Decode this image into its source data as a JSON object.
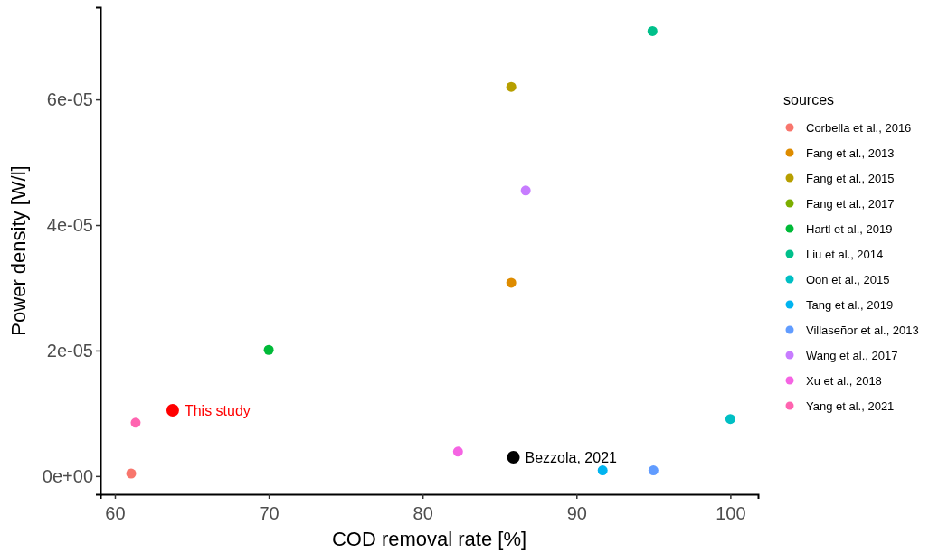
{
  "chart_data": {
    "type": "scatter",
    "xlabel": "COD removal rate [%]",
    "ylabel": "Power density [W/l]",
    "legend_title": "sources",
    "legend": "right",
    "grid": false,
    "marker": "circle",
    "xlim": [
      59.06,
      101.8
    ],
    "xticks": [
      60,
      70,
      80,
      90,
      100
    ],
    "ylim": [
      -2.9e-06,
      7.47e-05
    ],
    "yticks": [
      {
        "value": 0,
        "label": "0e+00"
      },
      {
        "value": 2e-05,
        "label": "2e-05"
      },
      {
        "value": 4e-05,
        "label": "4e-05"
      },
      {
        "value": 6e-05,
        "label": "6e-05"
      }
    ],
    "series": [
      {
        "name": "Corbella et al., 2016",
        "color": "#f8766d",
        "x": [
          61.06
        ],
        "values": [
          4e-07
        ]
      },
      {
        "name": "Fang et al., 2013",
        "color": "#de8c00",
        "x": [
          85.76
        ],
        "values": [
          3.08e-05
        ]
      },
      {
        "name": "Fang et al., 2015",
        "color": "#b79f00",
        "x": [
          85.76
        ],
        "values": [
          6.2e-05
        ]
      },
      {
        "name": "Fang et al., 2017",
        "color": "#7cae00",
        "x": [
          null
        ],
        "values": [
          null
        ]
      },
      {
        "name": "Hartl et al., 2019",
        "color": "#00ba38",
        "x": [
          70
        ],
        "values": [
          2.01e-05
        ]
      },
      {
        "name": "Liu et al., 2014",
        "color": "#00c08b",
        "x": [
          94.94
        ],
        "values": [
          7.09e-05
        ]
      },
      {
        "name": "Oon et al., 2015",
        "color": "#00bfc4",
        "x": [
          100
        ],
        "values": [
          9.1e-06
        ]
      },
      {
        "name": "Tang et al., 2019",
        "color": "#00b4f0",
        "x": [
          91.7
        ],
        "values": [
          9e-07
        ]
      },
      {
        "name": "Villaseñor et al., 2013",
        "color": "#619cff",
        "x": [
          95
        ],
        "values": [
          9e-07
        ]
      },
      {
        "name": "Wang et al., 2017",
        "color": "#c77cff",
        "x": [
          86.7
        ],
        "values": [
          4.55e-05
        ]
      },
      {
        "name": "Xu et al., 2018",
        "color": "#f564e3",
        "x": [
          82.3
        ],
        "values": [
          3.9e-06
        ]
      },
      {
        "name": "Yang et al., 2021",
        "color": "#ff64b0",
        "x": [
          61.35
        ],
        "values": [
          8.5e-06
        ]
      },
      {
        "color": "#ff0000",
        "x": [
          63.76
        ],
        "values": [
          1.05e-05
        ]
      },
      {
        "color": "#000000",
        "x": [
          85.9
        ],
        "values": [
          3e-06
        ]
      }
    ],
    "annotations": [
      {
        "text": "This study",
        "x": 63.76,
        "y": 1.05e-05
      },
      {
        "text": "Bezzola, 2021",
        "x": 85.9,
        "y": 3e-06
      }
    ]
  }
}
